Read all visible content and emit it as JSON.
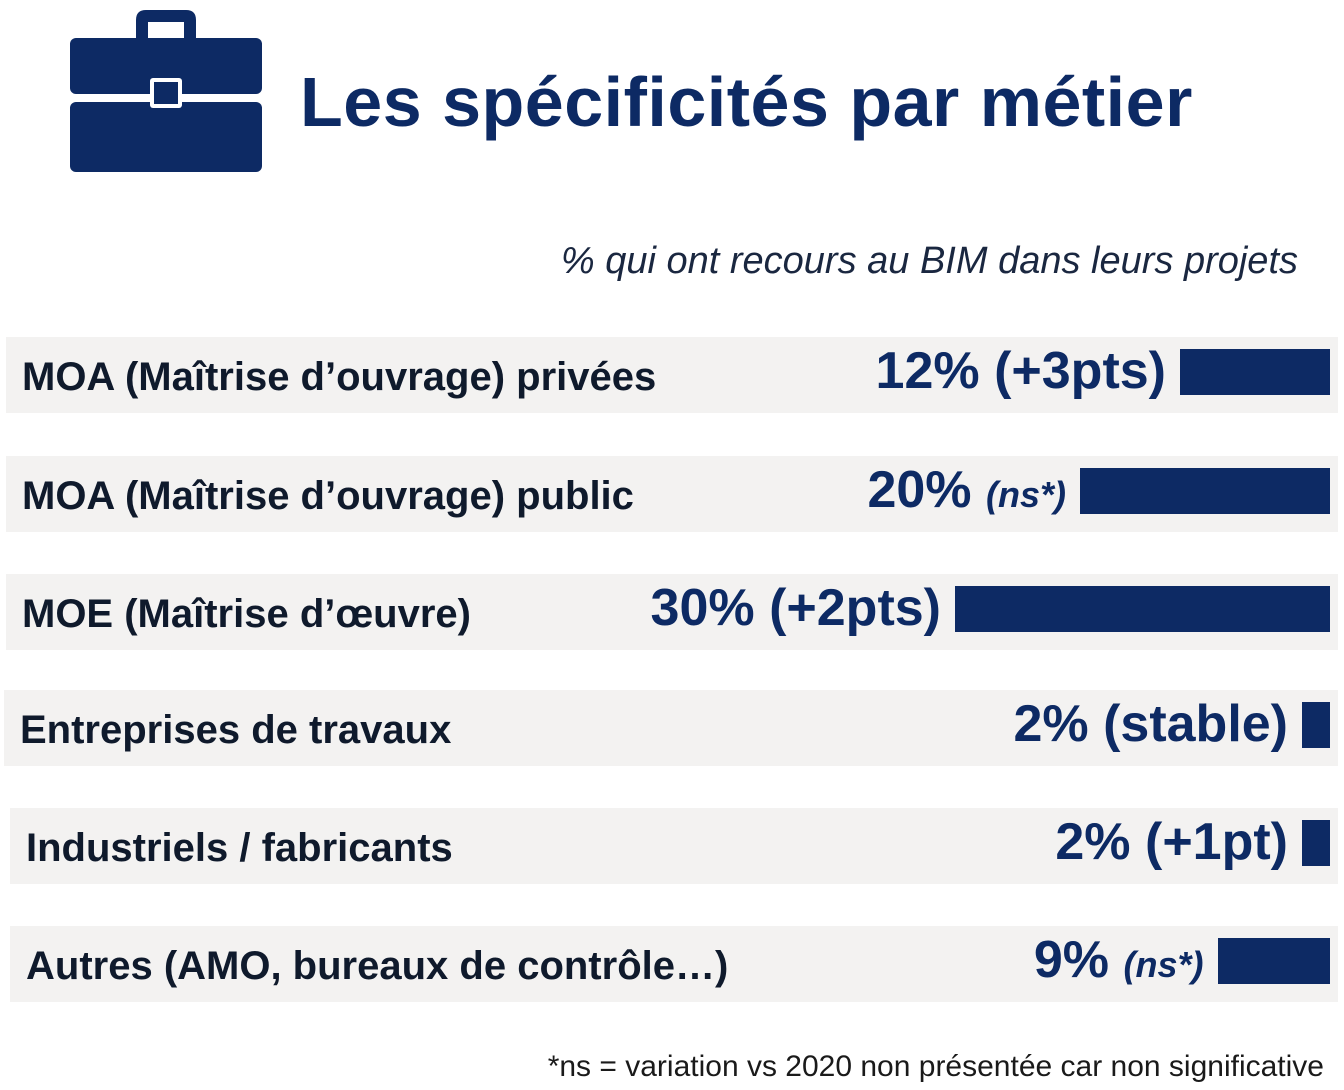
{
  "header": {
    "title": "Les spécificités par métier",
    "icon": "briefcase-icon",
    "icon_color": "#0d2a64"
  },
  "subtitle": "% qui ont recours au BIM dans leurs projets",
  "colors": {
    "bar": "#0d2a64",
    "row_background": "#f3f2f1",
    "text": "#0f1a2c"
  },
  "chart_data": {
    "type": "bar",
    "orientation": "horizontal",
    "categories": [
      "MOA (Maîtrise d’ouvrage) privées",
      "MOA (Maîtrise d’ouvrage) public",
      "MOE (Maîtrise d’œuvre)",
      "Entreprises de travaux",
      "Industriels / fabricants",
      "Autres (AMO, bureaux de contrôle…)"
    ],
    "values": [
      12,
      20,
      30,
      2,
      2,
      9
    ],
    "value_labels": [
      "12%",
      "20%",
      "30%",
      "2%",
      "2%",
      "9%"
    ],
    "changes": [
      "(+3pts)",
      "(ns*)",
      "(+2pts)",
      "(stable)",
      "(+1pt)",
      "(ns*)"
    ],
    "unit": "%",
    "grid": false,
    "legend": "none"
  },
  "footnote": "*ns = variation vs 2020 non présentée car non significative"
}
